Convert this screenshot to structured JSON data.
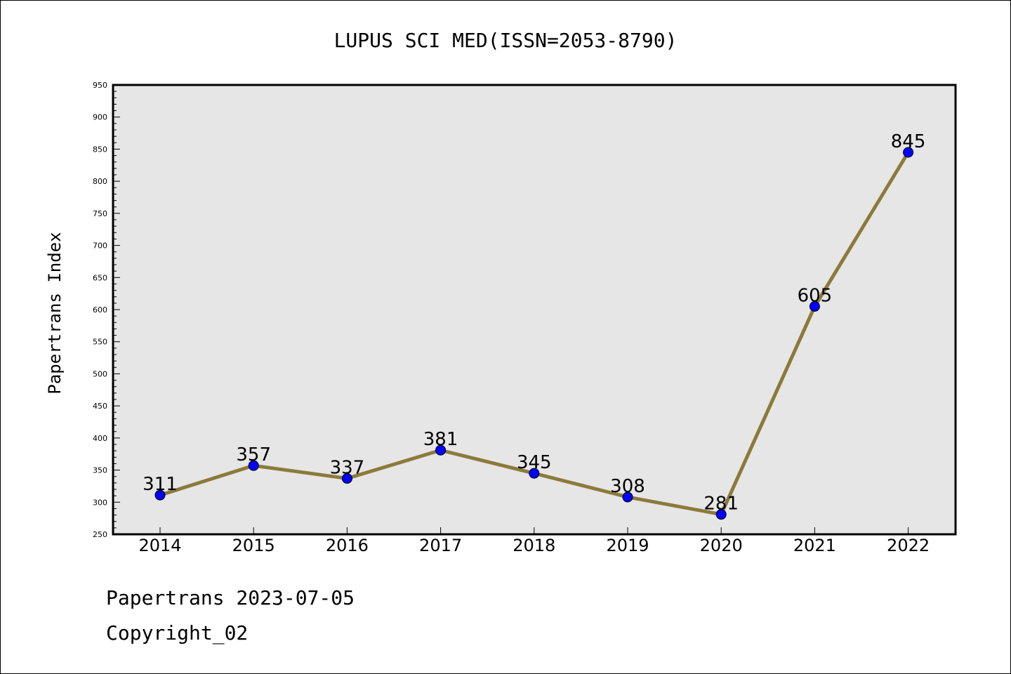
{
  "chart_data": {
    "type": "line",
    "title": "LUPUS SCI MED(ISSN=2053-8790)",
    "xlabel": "",
    "ylabel": "Papertrans Index",
    "categories": [
      "2014",
      "2015",
      "2016",
      "2017",
      "2018",
      "2019",
      "2020",
      "2021",
      "2022"
    ],
    "series": [
      {
        "values": [
          311,
          357,
          337,
          381,
          345,
          308,
          281,
          605,
          845
        ]
      }
    ],
    "data_labels": [
      "311",
      "357",
      "337",
      "381",
      "345",
      "308",
      "281",
      "605",
      "845"
    ],
    "ylim": [
      250,
      950
    ],
    "yticks": [
      250,
      300,
      350,
      400,
      450,
      500,
      550,
      600,
      650,
      700,
      750,
      800,
      850,
      900,
      950
    ],
    "grid": false,
    "legend": "none",
    "colors": {
      "line": "#8b7a3a",
      "marker": "#0000ff",
      "plot_background": "#e6e6e6"
    }
  },
  "footer": {
    "date_line": "Papertrans 2023-07-05",
    "copyright_line": "Copyright_02"
  }
}
